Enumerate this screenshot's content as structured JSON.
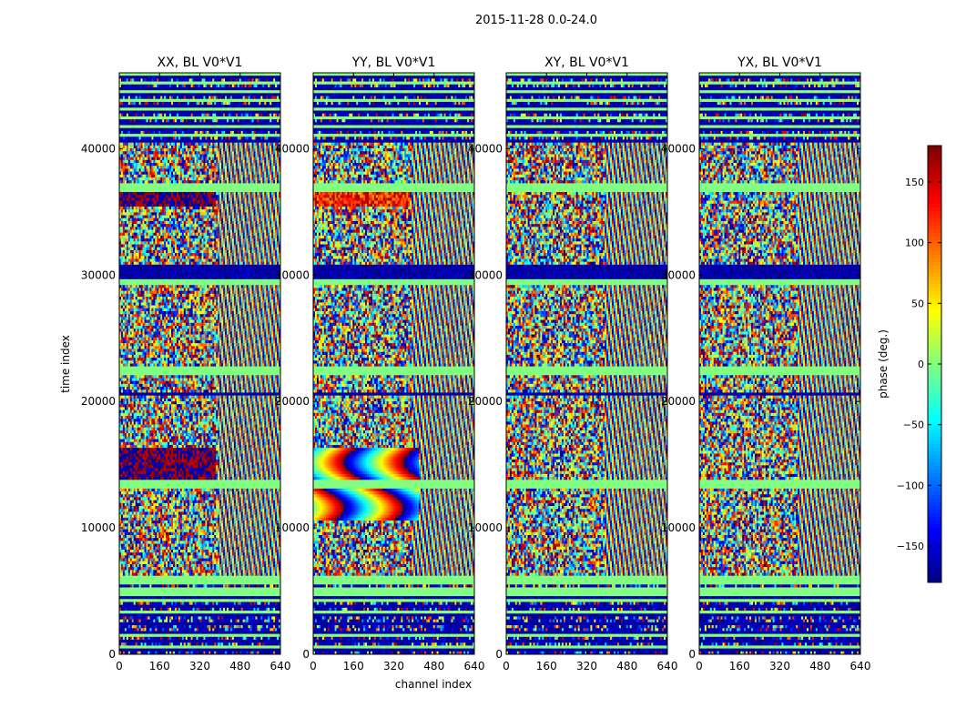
{
  "figure": {
    "title": "2015-11-28 0.0-24.0"
  },
  "chart_data": {
    "type": "heatmap",
    "title": "2015-11-28 0.0-24.0",
    "xlabel": "channel index",
    "ylabel": "time index",
    "xlim": [
      0,
      640
    ],
    "ylim": [
      0,
      46000
    ],
    "x_ticks": [
      "0",
      "160",
      "320",
      "480",
      "640"
    ],
    "x_tick_values": [
      0,
      160,
      320,
      480,
      640
    ],
    "y_ticks": [
      "0",
      "10000",
      "20000",
      "30000",
      "40000"
    ],
    "y_tick_values": [
      0,
      10000,
      20000,
      30000,
      40000
    ],
    "colormap": "jet",
    "panels": [
      {
        "title": "XX, BL V0*V1",
        "pol": "XX"
      },
      {
        "title": "YY, BL V0*V1",
        "pol": "YY"
      },
      {
        "title": "XY, BL V0*V1",
        "pol": "XY"
      },
      {
        "title": "YX, BL V0*V1",
        "pol": "YX"
      }
    ],
    "colorbar": {
      "label": "phase (deg.)",
      "range": [
        -180,
        180
      ],
      "ticks": [
        "150",
        "100",
        "50",
        "0",
        "−50",
        "−100",
        "−150"
      ],
      "tick_values": [
        150,
        100,
        50,
        0,
        -50,
        -100,
        -150
      ]
    }
  }
}
